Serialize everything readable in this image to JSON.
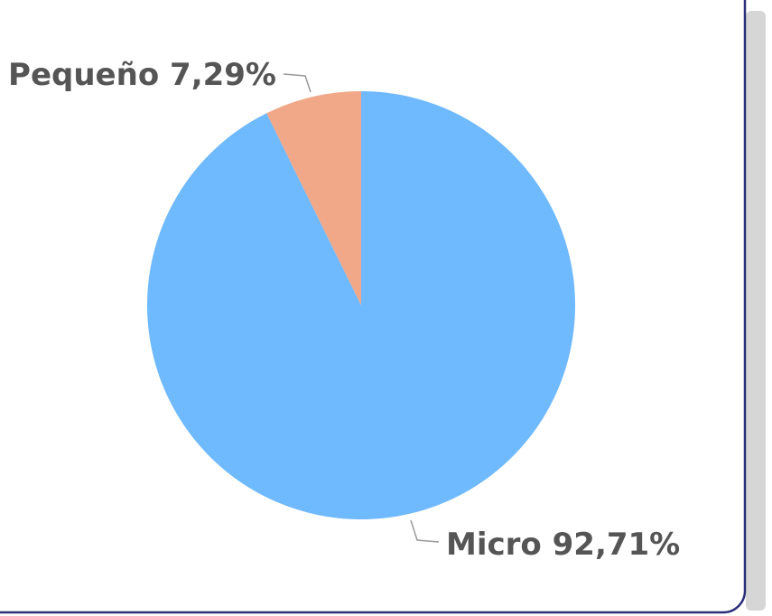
{
  "chart_data": {
    "type": "pie",
    "categories": [
      "Micro",
      "Pequeño"
    ],
    "values": [
      92.71,
      7.29
    ],
    "value_labels": [
      "92,71%",
      "7,29%"
    ],
    "colors": [
      "#6fb9ff",
      "#f0a888"
    ]
  }
}
